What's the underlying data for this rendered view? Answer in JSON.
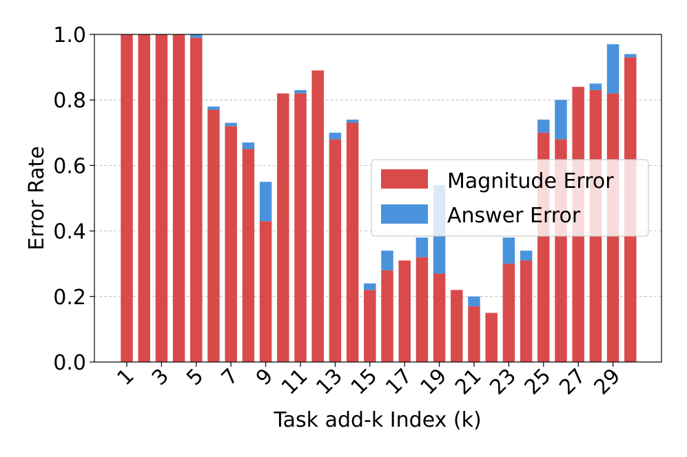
{
  "chart_data": {
    "type": "bar",
    "stacked": true,
    "xlabel": "Task add-k Index (k)",
    "ylabel": "Error Rate",
    "ylim": [
      0,
      1.0
    ],
    "yticks": [
      "0.0",
      "0.2",
      "0.4",
      "0.6",
      "0.8",
      "1.0"
    ],
    "xticks": [
      "1",
      "3",
      "5",
      "7",
      "9",
      "11",
      "13",
      "15",
      "17",
      "19",
      "21",
      "23",
      "25",
      "27",
      "29"
    ],
    "grid": "y-dashed",
    "legend_position": "center-right",
    "categories": [
      1,
      2,
      3,
      4,
      5,
      6,
      7,
      8,
      9,
      10,
      11,
      12,
      13,
      14,
      15,
      16,
      17,
      18,
      19,
      20,
      21,
      22,
      23,
      24,
      25,
      26,
      27,
      28,
      29,
      30
    ],
    "series": [
      {
        "name": "Magnitude Error",
        "color": "#d94a4a",
        "values": [
          1.0,
          1.0,
          1.0,
          1.0,
          0.99,
          0.77,
          0.72,
          0.65,
          0.43,
          0.82,
          0.82,
          0.89,
          0.68,
          0.73,
          0.22,
          0.28,
          0.31,
          0.32,
          0.27,
          0.22,
          0.17,
          0.15,
          0.3,
          0.31,
          0.7,
          0.68,
          0.84,
          0.83,
          0.82,
          0.93
        ]
      },
      {
        "name": "Answer Error",
        "color": "#4a93dc",
        "values": [
          0.0,
          0.0,
          0.0,
          0.0,
          0.01,
          0.01,
          0.01,
          0.02,
          0.12,
          0.0,
          0.01,
          0.0,
          0.02,
          0.01,
          0.02,
          0.06,
          0.0,
          0.06,
          0.27,
          0.0,
          0.03,
          0.0,
          0.08,
          0.03,
          0.04,
          0.12,
          0.0,
          0.02,
          0.15,
          0.01
        ]
      }
    ]
  }
}
